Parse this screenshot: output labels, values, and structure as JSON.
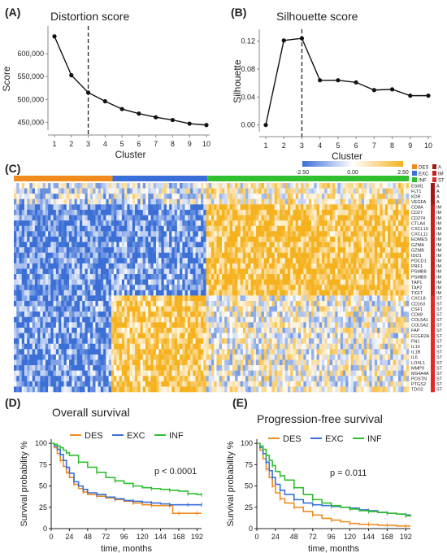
{
  "panels": {
    "A": {
      "letter": "(A)",
      "title": "Distortion score"
    },
    "B": {
      "letter": "(B)",
      "title": "Silhouette score"
    },
    "C": {
      "letter": "(C)"
    },
    "D": {
      "letter": "(D)",
      "title": "Overall survival",
      "pvalue": "p < 0.0001"
    },
    "E": {
      "letter": "(E)",
      "title": "Progression-free survival",
      "pvalue": "p = 0.011"
    }
  },
  "colors": {
    "DES": "#f08c1e",
    "EXC": "#3a6fd8",
    "INF": "#2fbf2f",
    "heat_low": "#3b6fd6",
    "heat_mid": "#ffffff",
    "heat_high": "#f5b21e",
    "gene_A": "#a01818",
    "gene_IM": "#c62020",
    "gene_ST": "#e02a2a"
  },
  "chart_data": [
    {
      "panel": "A",
      "type": "line",
      "title": "Distortion score",
      "xlabel": "Cluster",
      "ylabel": "Score",
      "x": [
        1,
        2,
        3,
        4,
        5,
        6,
        7,
        8,
        9,
        10
      ],
      "y": [
        638000,
        553000,
        515000,
        496000,
        479000,
        469000,
        461000,
        455000,
        447000,
        444000
      ],
      "xticks": [
        "1",
        "2",
        "3",
        "4",
        "5",
        "6",
        "7",
        "8",
        "9",
        "10"
      ],
      "ytick_values": [
        450000,
        500000,
        550000,
        600000
      ],
      "ytick_labels": [
        "450,000",
        "500,000",
        "550,000",
        "600,000"
      ],
      "ylim": [
        440000,
        650000
      ],
      "vline_x": 3
    },
    {
      "panel": "B",
      "type": "line",
      "title": "Silhouette score",
      "xlabel": "Cluster",
      "ylabel": "Silhouette",
      "x": [
        1,
        2,
        3,
        4,
        5,
        6,
        7,
        8,
        9,
        10
      ],
      "y": [
        0.0,
        0.121,
        0.124,
        0.064,
        0.064,
        0.061,
        0.05,
        0.051,
        0.042,
        0.042
      ],
      "xticks": [
        "1",
        "2",
        "3",
        "4",
        "5",
        "6",
        "7",
        "8",
        "9",
        "10"
      ],
      "ytick_values": [
        0.0,
        0.04,
        0.08,
        0.12
      ],
      "ytick_labels": [
        "0.00",
        "0.04",
        "0.08",
        "0.12"
      ],
      "ylim": [
        -0.005,
        0.13
      ],
      "vline_x": 3
    },
    {
      "panel": "C",
      "type": "heatmap",
      "groups": [
        "DES",
        "EXC",
        "INF"
      ],
      "group_fractions": [
        0.25,
        0.24,
        0.51
      ],
      "colorbar_ticks": [
        "-2.50",
        "0.00",
        "2.50"
      ],
      "genes": [
        "ESM1",
        "FLT1",
        "KDR",
        "VEGFA",
        "CD8A",
        "CD27",
        "CD274",
        "CTLA4",
        "CXCL10",
        "CXCL11",
        "EOMES",
        "GZMA",
        "GZMB",
        "IDO1",
        "PDCD1",
        "PRF1",
        "PSMB8",
        "PSMB9",
        "TAP1",
        "TAP2",
        "TIGIT",
        "CXCL8",
        "CD163",
        "CSF1",
        "CD68",
        "COL5A1",
        "COL5A2",
        "FAP",
        "FCGR2A",
        "FN1",
        "IL10",
        "IL1B",
        "IL6",
        "LOXL1",
        "MMP9",
        "MS4A4A",
        "POSTN",
        "PTGS2",
        "TDO2"
      ],
      "gene_sets": [
        "A",
        "A",
        "A",
        "A",
        "IM",
        "IM",
        "IM",
        "IM",
        "IM",
        "IM",
        "IM",
        "IM",
        "IM",
        "IM",
        "IM",
        "IM",
        "IM",
        "IM",
        "IM",
        "IM",
        "IM",
        "ST",
        "ST",
        "ST",
        "ST",
        "ST",
        "ST",
        "ST",
        "ST",
        "ST",
        "ST",
        "ST",
        "ST",
        "ST",
        "ST",
        "ST",
        "ST",
        "ST",
        "ST"
      ],
      "legend_groups": [
        "DES",
        "EXC",
        "INF"
      ],
      "legend_sets": [
        "A",
        "IM",
        "ST"
      ],
      "block_means": {
        "A": [
          -0.2,
          -0.1,
          0.2
        ],
        "IM": [
          -0.85,
          -0.75,
          0.85
        ],
        "ST": [
          -0.75,
          0.75,
          0.05
        ]
      }
    },
    {
      "panel": "D",
      "type": "line",
      "title": "Overall survival",
      "xlabel": "time, months",
      "ylabel": "Survival probability %",
      "xticks": [
        0,
        24,
        48,
        72,
        96,
        120,
        144,
        168,
        192
      ],
      "yticks": [
        0,
        25,
        50,
        75,
        100
      ],
      "xlim": [
        0,
        198
      ],
      "ylim": [
        0,
        105
      ],
      "annotation": "p < 0.0001",
      "series": [
        {
          "name": "DES",
          "x": [
            0,
            4,
            8,
            12,
            16,
            20,
            24,
            30,
            36,
            42,
            48,
            60,
            72,
            84,
            96,
            108,
            120,
            132,
            144,
            156,
            160,
            168,
            180,
            192,
            198
          ],
          "y": [
            100,
            95,
            88,
            80,
            73,
            66,
            60,
            52,
            47,
            43,
            40,
            38,
            36,
            34,
            32,
            30,
            28,
            27,
            27,
            27,
            18,
            18,
            18,
            18,
            18
          ]
        },
        {
          "name": "EXC",
          "x": [
            0,
            4,
            8,
            12,
            16,
            20,
            24,
            30,
            36,
            42,
            48,
            60,
            72,
            84,
            96,
            108,
            120,
            132,
            144,
            156,
            168,
            180,
            192,
            198
          ],
          "y": [
            100,
            97,
            93,
            87,
            80,
            72,
            65,
            55,
            50,
            46,
            42,
            40,
            37,
            35,
            33,
            32,
            31,
            30,
            29,
            28,
            28,
            28,
            28,
            28
          ]
        },
        {
          "name": "INF",
          "x": [
            0,
            4,
            8,
            12,
            16,
            20,
            24,
            36,
            48,
            60,
            72,
            84,
            96,
            108,
            120,
            132,
            144,
            156,
            168,
            180,
            192,
            198
          ],
          "y": [
            100,
            99,
            97,
            95,
            92,
            89,
            86,
            78,
            72,
            66,
            60,
            56,
            53,
            50,
            48,
            47,
            46,
            45,
            44,
            41,
            40,
            40
          ]
        }
      ]
    },
    {
      "panel": "E",
      "type": "line",
      "title": "Progression-free survival",
      "xlabel": "time, months",
      "ylabel": "Survival probability %",
      "xticks": [
        0,
        24,
        48,
        72,
        96,
        120,
        144,
        168,
        192
      ],
      "yticks": [
        0,
        25,
        50,
        75,
        100
      ],
      "xlim": [
        0,
        198
      ],
      "ylim": [
        0,
        105
      ],
      "annotation": "p = 0.011",
      "series": [
        {
          "name": "DES",
          "x": [
            0,
            4,
            8,
            12,
            16,
            20,
            24,
            30,
            36,
            48,
            60,
            72,
            84,
            96,
            108,
            120,
            132,
            144,
            156,
            168,
            180,
            192,
            198
          ],
          "y": [
            100,
            92,
            82,
            70,
            60,
            50,
            42,
            35,
            30,
            25,
            20,
            16,
            12,
            10,
            8,
            6,
            5,
            5,
            4,
            4,
            3,
            3,
            3
          ]
        },
        {
          "name": "EXC",
          "x": [
            0,
            4,
            8,
            12,
            16,
            20,
            24,
            30,
            36,
            48,
            60,
            72,
            84,
            96,
            108,
            120,
            132,
            144,
            156,
            168,
            180,
            192,
            198
          ],
          "y": [
            100,
            95,
            88,
            78,
            68,
            60,
            52,
            45,
            40,
            34,
            30,
            28,
            27,
            26,
            25,
            24,
            22,
            21,
            19,
            18,
            17,
            16,
            15
          ]
        },
        {
          "name": "INF",
          "x": [
            0,
            4,
            8,
            12,
            16,
            20,
            24,
            30,
            36,
            48,
            60,
            72,
            84,
            96,
            108,
            120,
            132,
            144,
            156,
            168,
            180,
            192,
            198
          ],
          "y": [
            100,
            97,
            93,
            86,
            80,
            74,
            67,
            62,
            57,
            48,
            40,
            34,
            30,
            27,
            25,
            23,
            21,
            20,
            19,
            18,
            17,
            15,
            14
          ]
        }
      ]
    }
  ]
}
